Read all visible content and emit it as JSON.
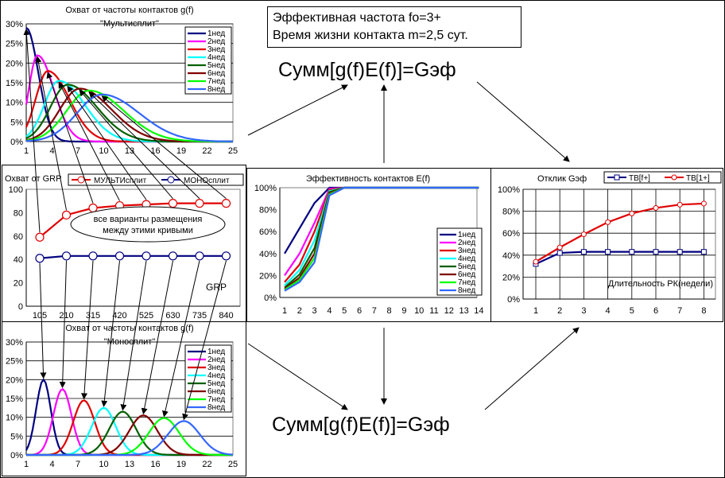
{
  "info": {
    "line1": "Эффективная частота fo=3+",
    "line2": "Время жизни контакта m=2,5 сут."
  },
  "formula_top": "Сумм[g(f)E(f)]=Gэф",
  "formula_bottom": "Сумм[g(f)E(f)]=Gэф",
  "ellipse_note": [
    "все варианты размещения",
    "между этими кривыми"
  ],
  "colors": {
    "week_colors": [
      "#000080",
      "#ff00ff",
      "#e00000",
      "#00ffff",
      "#006000",
      "#800000",
      "#00ff00",
      "#3366ff"
    ],
    "multi": "#e00000",
    "mono": "#000080"
  },
  "chart_data": [
    {
      "id": "g_multi",
      "type": "line",
      "title": "Охват от частоты контактов g(f)",
      "subtitle": "\"Мультисплит\"",
      "ylim": [
        0,
        0.3
      ],
      "yticks": [
        "0%",
        "5%",
        "10%",
        "15%",
        "20%",
        "25%",
        "30%"
      ],
      "xlim": [
        1,
        25
      ],
      "xticks": [
        "1",
        "4",
        "7",
        "10",
        "13",
        "16",
        "19",
        "22",
        "25"
      ],
      "legend": [
        "1нед",
        "2нед",
        "3нед",
        "4нед",
        "5нед",
        "6нед",
        "7нед",
        "8нед"
      ],
      "series_params": [
        {
          "name": "1нед",
          "peak_f": 1.0,
          "peak": 0.29,
          "width_l": 0.6,
          "width_r": 1.4
        },
        {
          "name": "2нед",
          "peak_f": 2.3,
          "peak": 0.22,
          "width_l": 1.0,
          "width_r": 1.9
        },
        {
          "name": "3нед",
          "peak_f": 3.5,
          "peak": 0.18,
          "width_l": 1.4,
          "width_r": 2.5
        },
        {
          "name": "4нед",
          "peak_f": 4.8,
          "peak": 0.155,
          "width_l": 1.7,
          "width_r": 3.0
        },
        {
          "name": "5нед",
          "peak_f": 5.8,
          "peak": 0.145,
          "width_l": 2.0,
          "width_r": 3.4
        },
        {
          "name": "6нед",
          "peak_f": 7.2,
          "peak": 0.135,
          "width_l": 2.3,
          "width_r": 3.7
        },
        {
          "name": "7нед",
          "peak_f": 8.3,
          "peak": 0.13,
          "width_l": 2.6,
          "width_r": 4.0
        },
        {
          "name": "8нед",
          "peak_f": 9.8,
          "peak": 0.12,
          "width_l": 2.9,
          "width_r": 4.3
        }
      ]
    },
    {
      "id": "grp",
      "type": "line",
      "title": "Охват от GRP",
      "ylim": [
        0,
        100
      ],
      "yticks": [
        "0",
        "20",
        "40",
        "60",
        "80",
        "100"
      ],
      "categories": [
        "105",
        "210",
        "315",
        "420",
        "525",
        "630",
        "735",
        "840"
      ],
      "xlabel": "GRP",
      "series": [
        {
          "name": "МУЛЬТИсплит",
          "values": [
            59,
            78,
            84,
            86,
            87,
            88,
            88,
            88
          ]
        },
        {
          "name": "МОНОсплит",
          "values": [
            41,
            43,
            43,
            43,
            43,
            43,
            43,
            43
          ]
        }
      ]
    },
    {
      "id": "eff",
      "type": "line",
      "title": "Эффективность контактов E(f)",
      "ylim": [
        0,
        1
      ],
      "yticks": [
        "0%",
        "20%",
        "40%",
        "60%",
        "80%",
        "100%"
      ],
      "categories": [
        "1",
        "2",
        "3",
        "4",
        "5",
        "6",
        "7",
        "8",
        "9",
        "10",
        "11",
        "12",
        "13",
        "14"
      ],
      "legend": [
        "1нед",
        "2нед",
        "3нед",
        "4нед",
        "5нед",
        "6нед",
        "7нед",
        "8нед"
      ],
      "series": [
        {
          "name": "1нед",
          "values": [
            0.4,
            0.63,
            0.86,
            1.0,
            1.0,
            1.0,
            1.0,
            1.0,
            1.0,
            1.0,
            1.0,
            1.0,
            1.0,
            1.0
          ]
        },
        {
          "name": "2нед",
          "values": [
            0.2,
            0.4,
            0.68,
            0.99,
            1.0,
            1.0,
            1.0,
            1.0,
            1.0,
            1.0,
            1.0,
            1.0,
            1.0,
            1.0
          ]
        },
        {
          "name": "3нед",
          "values": [
            0.14,
            0.3,
            0.6,
            0.98,
            1.0,
            1.0,
            1.0,
            1.0,
            1.0,
            1.0,
            1.0,
            1.0,
            1.0,
            1.0
          ]
        },
        {
          "name": "4нед",
          "values": [
            0.11,
            0.25,
            0.52,
            0.97,
            1.0,
            1.0,
            1.0,
            1.0,
            1.0,
            1.0,
            1.0,
            1.0,
            1.0,
            1.0
          ]
        },
        {
          "name": "5нед",
          "values": [
            0.09,
            0.21,
            0.45,
            0.96,
            1.0,
            1.0,
            1.0,
            1.0,
            1.0,
            1.0,
            1.0,
            1.0,
            1.0,
            1.0
          ]
        },
        {
          "name": "6нед",
          "values": [
            0.08,
            0.18,
            0.4,
            0.95,
            1.0,
            1.0,
            1.0,
            1.0,
            1.0,
            1.0,
            1.0,
            1.0,
            1.0,
            1.0
          ]
        },
        {
          "name": "7нед",
          "values": [
            0.07,
            0.16,
            0.36,
            0.94,
            1.0,
            1.0,
            1.0,
            1.0,
            1.0,
            1.0,
            1.0,
            1.0,
            1.0,
            1.0
          ]
        },
        {
          "name": "8нед",
          "values": [
            0.06,
            0.14,
            0.32,
            0.93,
            1.0,
            1.0,
            1.0,
            1.0,
            1.0,
            1.0,
            1.0,
            1.0,
            1.0,
            1.0
          ]
        }
      ]
    },
    {
      "id": "response",
      "type": "line",
      "title": "Отклик Gэф",
      "ylim": [
        0,
        1
      ],
      "yticks": [
        "0%",
        "20%",
        "40%",
        "60%",
        "80%",
        "100%"
      ],
      "categories": [
        "1",
        "2",
        "3",
        "4",
        "5",
        "6",
        "7",
        "8"
      ],
      "xlabel": "Длительность РК(недели)",
      "series": [
        {
          "name": "ТВ[f+]",
          "values": [
            0.32,
            0.42,
            0.43,
            0.43,
            0.43,
            0.43,
            0.43,
            0.43
          ]
        },
        {
          "name": "ТВ[1+]",
          "values": [
            0.34,
            0.47,
            0.59,
            0.7,
            0.78,
            0.83,
            0.86,
            0.87
          ]
        }
      ]
    },
    {
      "id": "g_mono",
      "type": "line",
      "title": "Охват от частоты контактов g(f)",
      "subtitle": "\"Моносплит\"",
      "ylim": [
        0,
        0.3
      ],
      "yticks": [
        "0%",
        "5%",
        "10%",
        "15%",
        "20%",
        "25%",
        "30%"
      ],
      "xlim": [
        1,
        25
      ],
      "xticks": [
        "1",
        "4",
        "7",
        "10",
        "13",
        "16",
        "19",
        "22",
        "25"
      ],
      "legend": [
        "1нед",
        "2нед",
        "3нед",
        "4нед",
        "5нед",
        "6нед",
        "7нед",
        "8нед"
      ],
      "series_params": [
        {
          "name": "1нед",
          "peak_f": 3.0,
          "peak": 0.2,
          "width": 0.85
        },
        {
          "name": "2нед",
          "peak_f": 5.2,
          "peak": 0.175,
          "width": 1.05
        },
        {
          "name": "3нед",
          "peak_f": 7.7,
          "peak": 0.145,
          "width": 1.25
        },
        {
          "name": "4нед",
          "peak_f": 10.0,
          "peak": 0.125,
          "width": 1.4
        },
        {
          "name": "5нед",
          "peak_f": 12.2,
          "peak": 0.115,
          "width": 1.55
        },
        {
          "name": "6нед",
          "peak_f": 14.6,
          "peak": 0.105,
          "width": 1.65
        },
        {
          "name": "7нед",
          "peak_f": 17.0,
          "peak": 0.098,
          "width": 1.75
        },
        {
          "name": "8нед",
          "peak_f": 19.3,
          "peak": 0.09,
          "width": 1.85
        }
      ]
    }
  ]
}
